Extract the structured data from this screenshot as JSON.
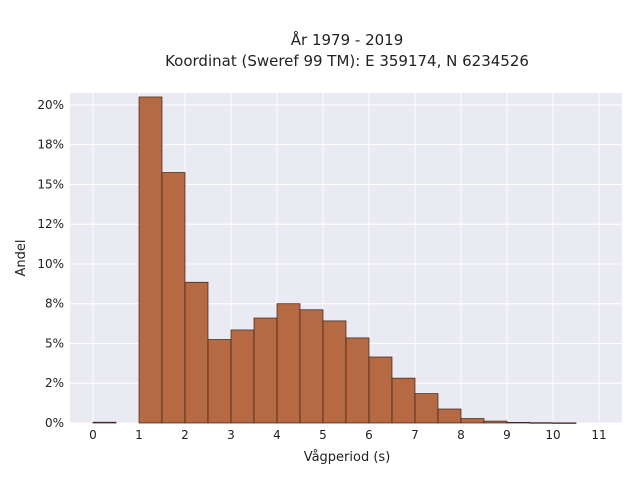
{
  "chart_data": {
    "type": "bar",
    "title_lines": [
      "År 1979 - 2019",
      "Koordinat (Sweref 99 TM): E 359174, N 6234526"
    ],
    "xlabel": "Vågperiod (s)",
    "ylabel": "Andel",
    "xlim": [
      -0.5,
      11.5
    ],
    "ylim": [
      0,
      0.2075
    ],
    "x_ticks": [
      0,
      1,
      2,
      3,
      4,
      5,
      6,
      7,
      8,
      9,
      10,
      11
    ],
    "x_tick_labels": [
      "0",
      "1",
      "2",
      "3",
      "4",
      "5",
      "6",
      "7",
      "8",
      "9",
      "10",
      "11"
    ],
    "y_ticks": [
      0,
      0.025,
      0.05,
      0.075,
      0.1,
      0.125,
      0.15,
      0.175,
      0.2
    ],
    "y_tick_labels": [
      "0%",
      "2%",
      "5%",
      "8%",
      "10%",
      "12%",
      "15%",
      "18%",
      "20%"
    ],
    "bin_width": 0.5,
    "bins": [
      {
        "x0": 0.0,
        "value": 0.0005
      },
      {
        "x0": 0.5,
        "value": 0.0
      },
      {
        "x0": 1.0,
        "value": 0.205
      },
      {
        "x0": 1.5,
        "value": 0.1575
      },
      {
        "x0": 2.0,
        "value": 0.0885
      },
      {
        "x0": 2.5,
        "value": 0.0525
      },
      {
        "x0": 3.0,
        "value": 0.0585
      },
      {
        "x0": 3.5,
        "value": 0.066
      },
      {
        "x0": 4.0,
        "value": 0.075
      },
      {
        "x0": 4.5,
        "value": 0.0712
      },
      {
        "x0": 5.0,
        "value": 0.0642
      },
      {
        "x0": 5.5,
        "value": 0.0535
      },
      {
        "x0": 6.0,
        "value": 0.0415
      },
      {
        "x0": 6.5,
        "value": 0.0282
      },
      {
        "x0": 7.0,
        "value": 0.0185
      },
      {
        "x0": 7.5,
        "value": 0.0088
      },
      {
        "x0": 8.0,
        "value": 0.0028
      },
      {
        "x0": 8.5,
        "value": 0.0012
      },
      {
        "x0": 9.0,
        "value": 0.0004
      },
      {
        "x0": 9.5,
        "value": 0.0002
      },
      {
        "x0": 10.0,
        "value": 0.0001
      },
      {
        "x0": 10.5,
        "value": 0.0
      }
    ],
    "bar_color": "#b66a43",
    "bar_edge_color": "#3a2218",
    "background_color": "#eaeaf2",
    "grid": true
  }
}
